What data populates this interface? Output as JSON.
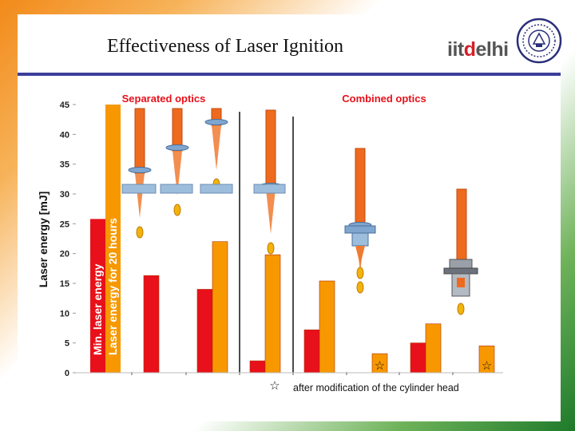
{
  "slide": {
    "title": "Effectiveness of Laser Ignition",
    "logo": {
      "part1": "iit",
      "part2": "d",
      "part3": "elhi"
    }
  },
  "colors": {
    "min_energy": "#e8101a",
    "twenty_hours": "#f79800",
    "rule": "#3b3f9a"
  },
  "chart_data": {
    "type": "bar",
    "ylabel": "Laser energy [mJ]",
    "ylim": [
      0,
      45
    ],
    "yticks": [
      0,
      5,
      10,
      15,
      20,
      25,
      30,
      35,
      40,
      45
    ],
    "groups": [
      {
        "header": "Separated optics"
      },
      {
        "header": "Combined optics"
      }
    ],
    "series": [
      {
        "name": "Min. laser energy",
        "color": "#e8101a"
      },
      {
        "name": "Laser energy for 20 hours",
        "color": "#f79800"
      }
    ],
    "bars": [
      {
        "series": 0,
        "value": 16.3
      },
      {
        "series": 0,
        "value": 14.0
      },
      {
        "series": 1,
        "value": 22.0
      },
      {
        "series": 0,
        "value": 2.0
      },
      {
        "series": 1,
        "value": 19.8
      },
      {
        "series": 0,
        "value": 7.2
      },
      {
        "series": 1,
        "value": 15.4
      },
      {
        "series": 1,
        "value": 3.2,
        "star": true
      },
      {
        "series": 0,
        "value": 5.0
      },
      {
        "series": 1,
        "value": 8.2
      },
      {
        "series": 1,
        "value": 4.5,
        "star": true
      }
    ],
    "footnote": "after modification of the cylinder head",
    "star_symbol": "☆"
  }
}
